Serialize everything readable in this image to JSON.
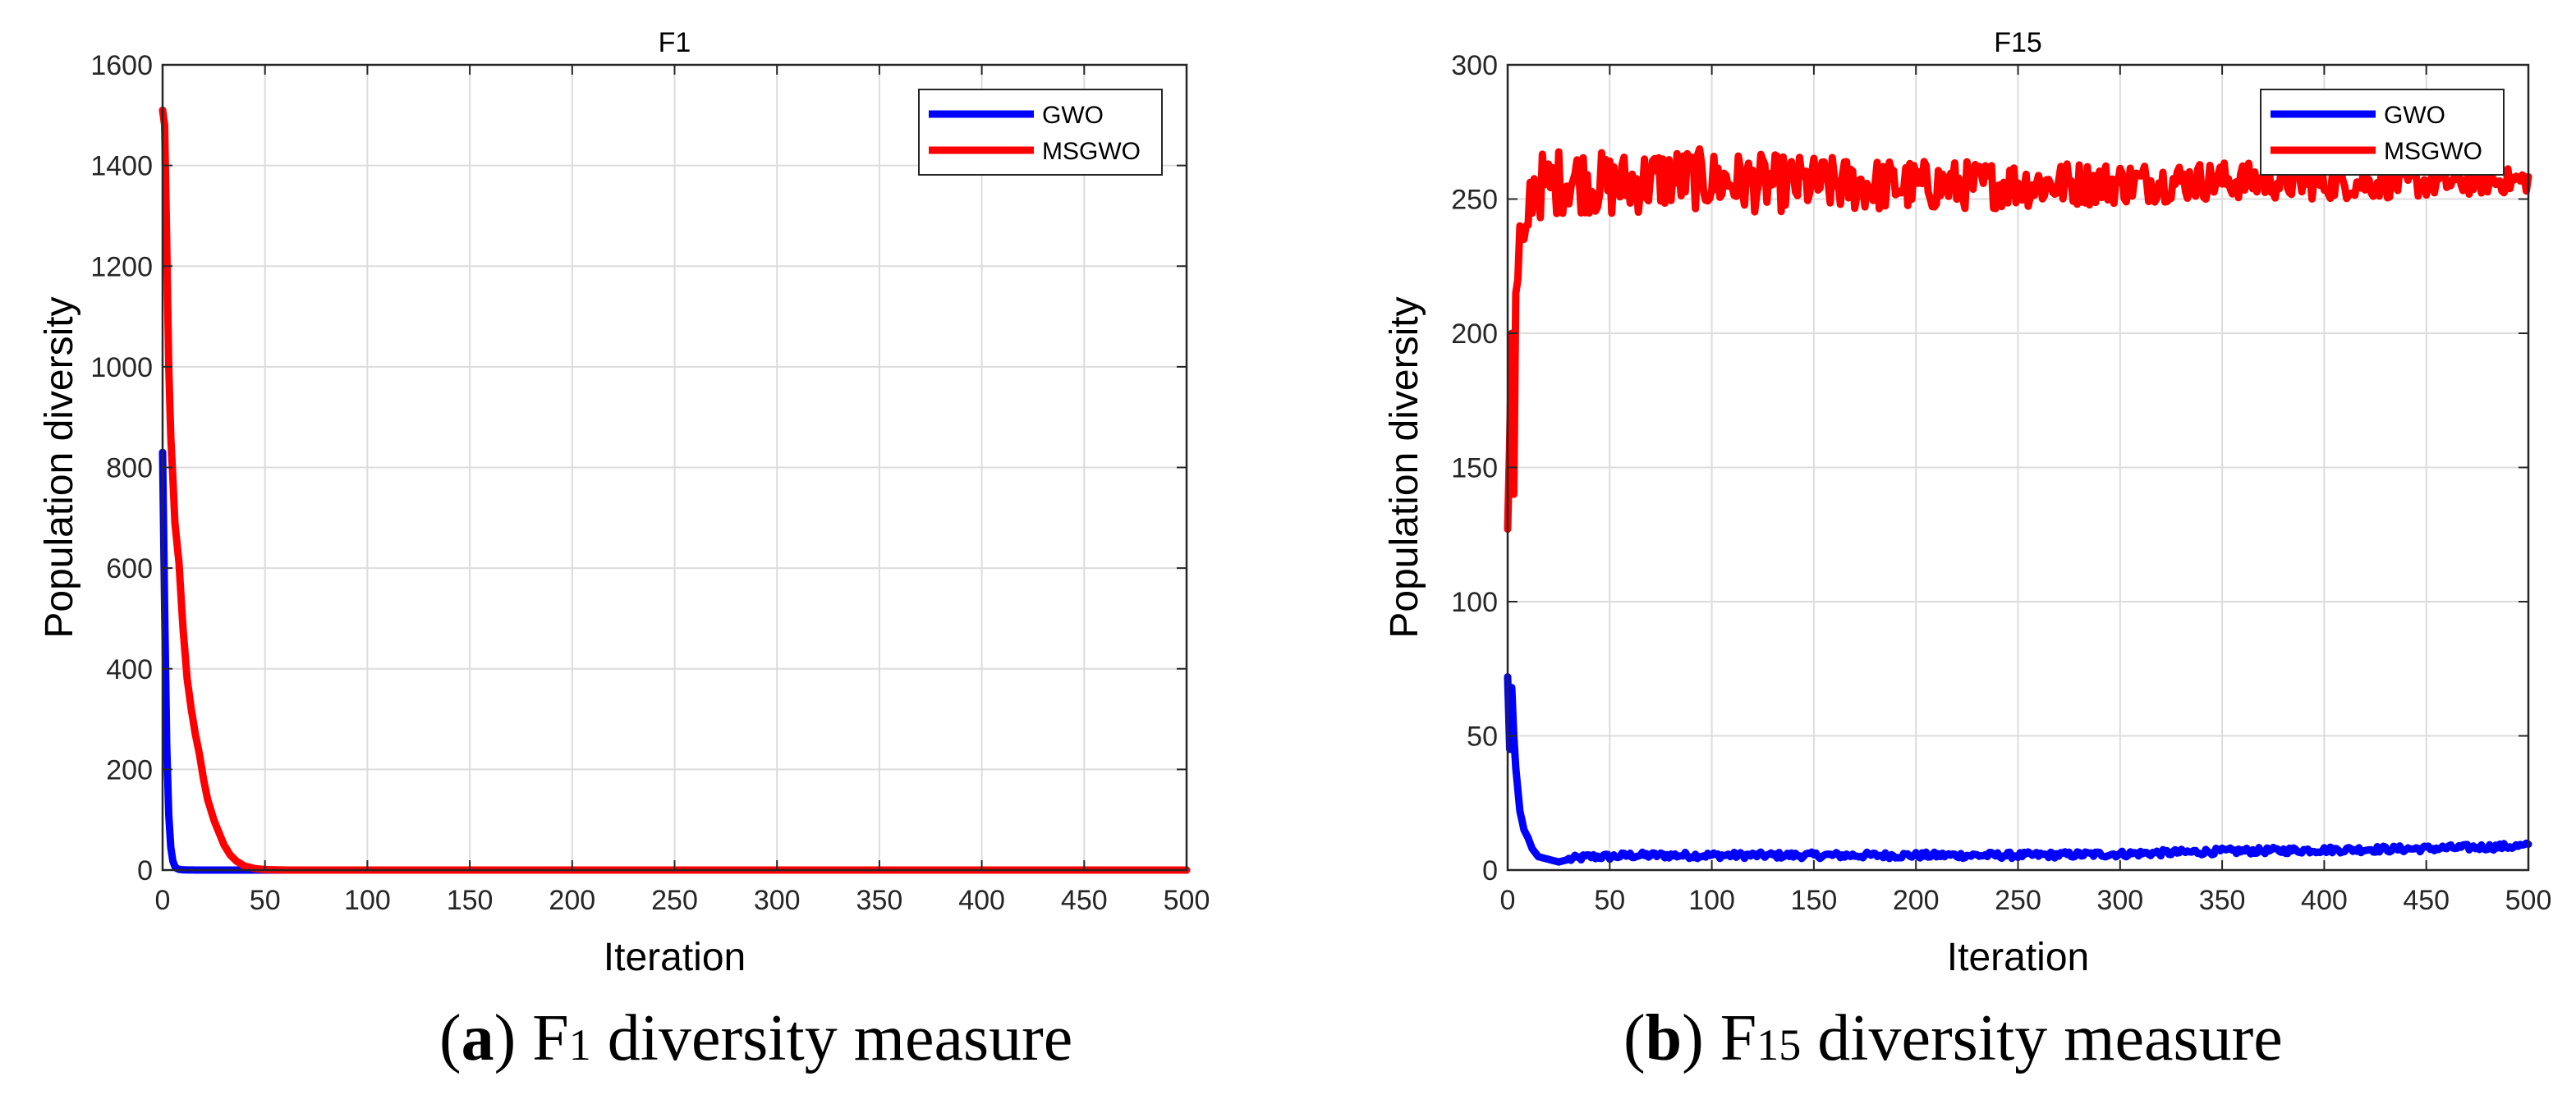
{
  "chart_data": [
    {
      "type": "line",
      "title": "F1",
      "xlabel": "Iteration",
      "ylabel": "Population diversity",
      "xlim": [
        0,
        500
      ],
      "ylim": [
        0,
        1600
      ],
      "xticks": [
        0,
        50,
        100,
        150,
        200,
        250,
        300,
        350,
        400,
        450,
        500
      ],
      "yticks": [
        0,
        200,
        400,
        600,
        800,
        1000,
        1200,
        1400,
        1600
      ],
      "grid": true,
      "legend": "top-right",
      "series": [
        {
          "name": "GWO",
          "color": "#0000ff",
          "x": [
            0,
            1,
            2,
            3,
            4,
            5,
            6,
            7,
            8,
            10,
            12,
            15,
            20,
            30,
            500
          ],
          "y": [
            830,
            520,
            250,
            110,
            45,
            18,
            7,
            3,
            1.5,
            0.5,
            0.2,
            0.1,
            0,
            0,
            0
          ]
        },
        {
          "name": "MSGWO",
          "color": "#ff0000",
          "x": [
            0,
            1,
            2,
            3,
            4,
            5,
            6,
            8,
            10,
            12,
            14,
            16,
            18,
            20,
            22,
            25,
            28,
            30,
            33,
            36,
            40,
            45,
            50,
            60,
            500
          ],
          "y": [
            1510,
            1480,
            1250,
            1000,
            860,
            780,
            690,
            610,
            480,
            380,
            320,
            270,
            230,
            180,
            140,
            100,
            70,
            50,
            30,
            18,
            8,
            3,
            1,
            0,
            0
          ]
        }
      ],
      "caption": {
        "letter": "a",
        "before": "F",
        "sub": "1",
        "after": "diversity measure"
      }
    },
    {
      "type": "line",
      "title": "F15",
      "xlabel": "Iteration",
      "ylabel": "Population diversity",
      "xlim": [
        0,
        500
      ],
      "ylim": [
        0,
        300
      ],
      "xticks": [
        0,
        50,
        100,
        150,
        200,
        250,
        300,
        350,
        400,
        450,
        500
      ],
      "yticks": [
        0,
        50,
        100,
        150,
        200,
        250,
        300
      ],
      "grid": true,
      "legend": "top-right",
      "series": [
        {
          "name": "GWO",
          "color": "#0000ff",
          "x": [
            0,
            1,
            2,
            3,
            4,
            5,
            6,
            8,
            10,
            12,
            15,
            20,
            25,
            30,
            40,
            50,
            60,
            80,
            100,
            150,
            200,
            250,
            300,
            350,
            400,
            450,
            500
          ],
          "y": [
            72,
            45,
            68,
            50,
            38,
            30,
            22,
            15,
            12,
            8,
            5,
            4,
            3,
            4,
            5,
            5,
            5.5,
            5.5,
            5.5,
            5.5,
            5.5,
            5.5,
            6,
            7,
            7.5,
            8,
            9
          ],
          "noise": 1.2,
          "noise_decay": 0,
          "noise_start": 30
        },
        {
          "name": "MSGWO",
          "color": "#ff0000",
          "x": [
            0,
            1,
            2,
            3,
            4,
            5,
            6,
            8,
            10,
            12,
            15,
            20,
            30,
            50,
            80,
            120,
            200,
            300,
            350,
            400,
            450,
            500
          ],
          "y": [
            127,
            160,
            200,
            140,
            215,
            220,
            240,
            235,
            245,
            255,
            255,
            255,
            258,
            255,
            258,
            256,
            255,
            256,
            257,
            256,
            256,
            257
          ],
          "noise": 13,
          "noise_decay": 1,
          "noise_start": 10
        }
      ],
      "caption": {
        "letter": "b",
        "before": "F",
        "sub": "15",
        "after": "diversity measure"
      }
    }
  ]
}
